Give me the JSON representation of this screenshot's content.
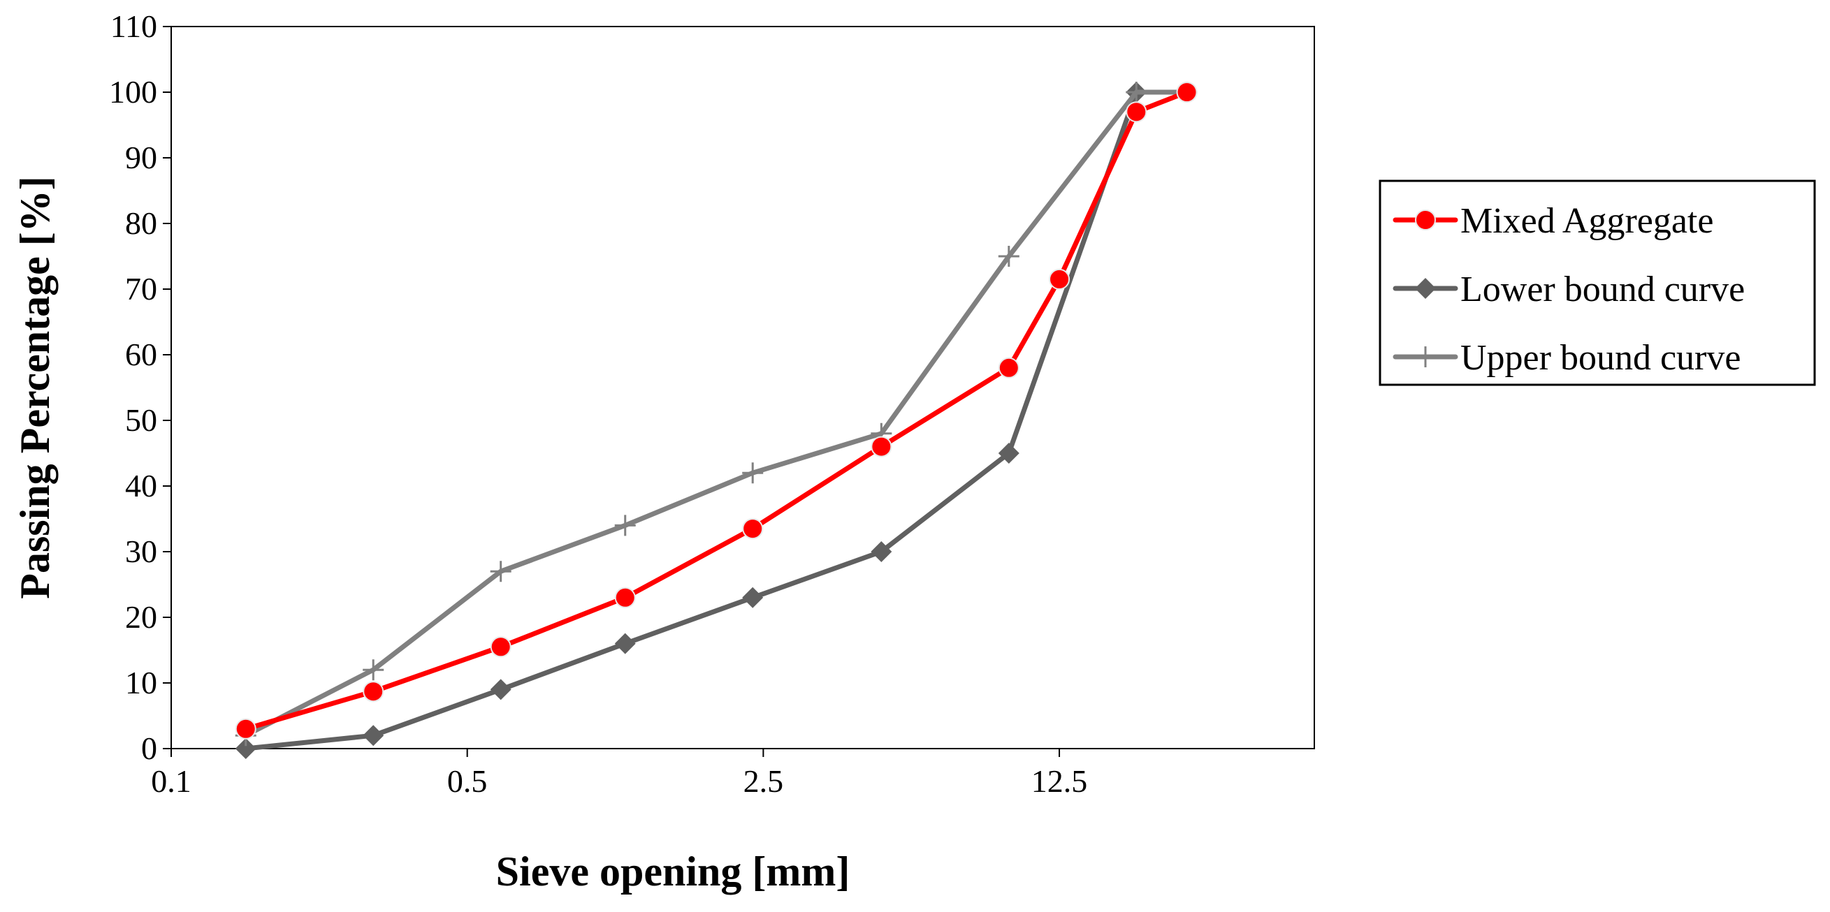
{
  "chart_data": {
    "type": "line",
    "title": "",
    "xlabel": "Sieve opening [mm]",
    "ylabel": "Passing Percentage  [%]",
    "xscale": "log",
    "xlim": [
      0.1,
      50
    ],
    "ylim": [
      0,
      110
    ],
    "xticks": [
      0.1,
      0.5,
      2.5,
      12.5
    ],
    "xtick_labels": [
      "0.1",
      "0.5",
      "2.5",
      "12.5"
    ],
    "yticks": [
      0,
      10,
      20,
      30,
      40,
      50,
      60,
      70,
      80,
      90,
      100,
      110
    ],
    "ytick_labels": [
      "0",
      "10",
      "20",
      "30",
      "40",
      "50",
      "60",
      "70",
      "80",
      "90",
      "100",
      "110"
    ],
    "grid": false,
    "legend_position": "right",
    "series": [
      {
        "name": "Mixed Aggregate",
        "color": "#ff0000",
        "marker": "circle",
        "x": [
          0.15,
          0.3,
          0.6,
          1.18,
          2.36,
          4.75,
          9.5,
          12.5,
          19,
          25
        ],
        "y": [
          3,
          8.7,
          15.5,
          23,
          33.5,
          46,
          58,
          71.5,
          97,
          100
        ]
      },
      {
        "name": "Lower bound curve",
        "color": "#606060",
        "marker": "diamond",
        "x": [
          0.15,
          0.3,
          0.6,
          1.18,
          2.36,
          4.75,
          9.5,
          19,
          25
        ],
        "y": [
          0,
          2,
          9,
          16,
          23,
          30,
          45,
          100,
          100
        ]
      },
      {
        "name": "Upper bound curve",
        "color": "#808080",
        "marker": "plus",
        "x": [
          0.15,
          0.3,
          0.6,
          1.18,
          2.36,
          4.75,
          9.5,
          19,
          25
        ],
        "y": [
          2,
          12,
          27,
          34,
          42,
          48,
          75,
          100,
          100
        ]
      }
    ]
  }
}
